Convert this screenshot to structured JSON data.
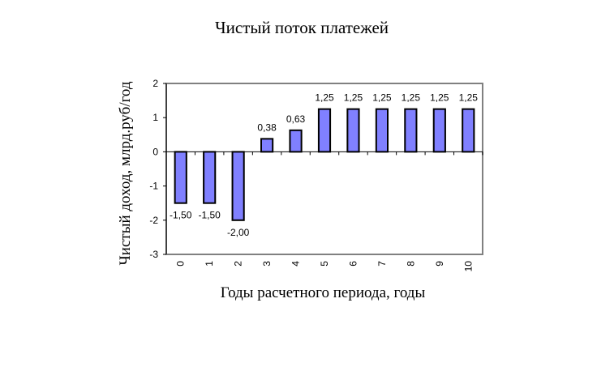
{
  "chart_data": {
    "type": "bar",
    "title": "Чистый поток платежей",
    "xlabel": "Годы расчетного периода, годы",
    "ylabel": "Чистый доход, млрд.руб/год",
    "categories": [
      "0",
      "1",
      "2",
      "3",
      "4",
      "5",
      "6",
      "7",
      "8",
      "9",
      "10"
    ],
    "values": [
      -1.5,
      -1.5,
      -2.0,
      0.38,
      0.63,
      1.25,
      1.25,
      1.25,
      1.25,
      1.25,
      1.25
    ],
    "data_labels": [
      "-1,50",
      "-1,50",
      "-2,00",
      "0,38",
      "0,63",
      "1,25",
      "1,25",
      "1,25",
      "1,25",
      "1,25",
      "1,25"
    ],
    "ylim": [
      -3,
      2
    ],
    "yticks": [
      2,
      1,
      0,
      -1,
      -2,
      -3
    ],
    "ytick_labels": [
      "2",
      "1",
      "0",
      "-1",
      "-2",
      "-3"
    ],
    "grid": false,
    "legend": "none",
    "bar_color": "#8080ff",
    "bar_edge_color": "#000000"
  }
}
